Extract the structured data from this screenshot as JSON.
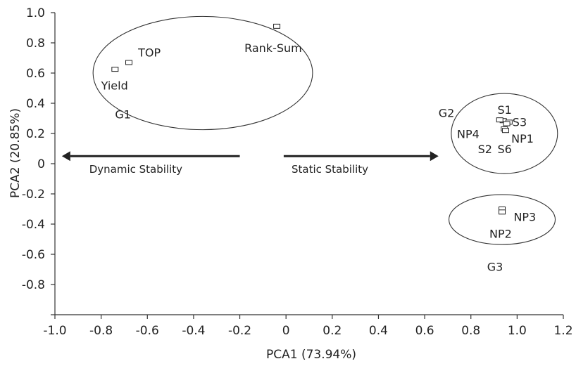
{
  "chart_data": {
    "type": "scatter",
    "title": "",
    "xlabel": "PCA1 (73.94%)",
    "ylabel": "PCA2 (20.85%)",
    "xlim": [
      -1.0,
      1.2
    ],
    "ylim": [
      -1.0,
      1.0
    ],
    "xticks": [
      "-1.0",
      "-0.8",
      "-0.6",
      "-0.4",
      "-0.2",
      "0",
      "0.2",
      "0.4",
      "0.6",
      "0.8",
      "1.0",
      "1.2"
    ],
    "yticks": [
      "1.0",
      "0.8",
      "0.6",
      "0.4",
      "0.2",
      "0",
      "-0.2",
      "-0.4",
      "-0.6",
      "-0.8"
    ],
    "grid": false,
    "marker": "open-square",
    "points": [
      {
        "x": -0.74,
        "y": 0.625,
        "label": "Yield"
      },
      {
        "x": -0.68,
        "y": 0.67,
        "label": "TOP"
      },
      {
        "x": -0.04,
        "y": 0.91,
        "label": "Rank-Sum"
      },
      {
        "x": 0.94,
        "y": 0.285,
        "label": "S1"
      },
      {
        "x": 0.965,
        "y": 0.275,
        "label": "S3"
      },
      {
        "x": 0.955,
        "y": 0.265,
        "label": "NP1"
      },
      {
        "x": 0.925,
        "y": 0.29,
        "label": "NP4"
      },
      {
        "x": 0.945,
        "y": 0.23,
        "label": "S2"
      },
      {
        "x": 0.95,
        "y": 0.22,
        "label": "S6"
      },
      {
        "x": 0.935,
        "y": -0.3,
        "label": "NP3"
      },
      {
        "x": 0.935,
        "y": -0.32,
        "label": "NP2"
      }
    ],
    "groups": [
      {
        "label": "G1",
        "cx": -0.36,
        "cy": 0.6,
        "rx": 0.475,
        "ry": 0.375
      },
      {
        "label": "G2",
        "cx": 0.945,
        "cy": 0.2,
        "rx": 0.23,
        "ry": 0.265
      },
      {
        "label": "G3",
        "cx": 0.935,
        "cy": -0.37,
        "rx": 0.23,
        "ry": 0.165
      }
    ],
    "annotations": [
      {
        "text": "Dynamic Stability",
        "from": -0.2,
        "to": -0.97,
        "y": 0.05
      },
      {
        "text": "Static Stability",
        "from": -0.01,
        "to": 0.66,
        "y": 0.05
      }
    ]
  }
}
